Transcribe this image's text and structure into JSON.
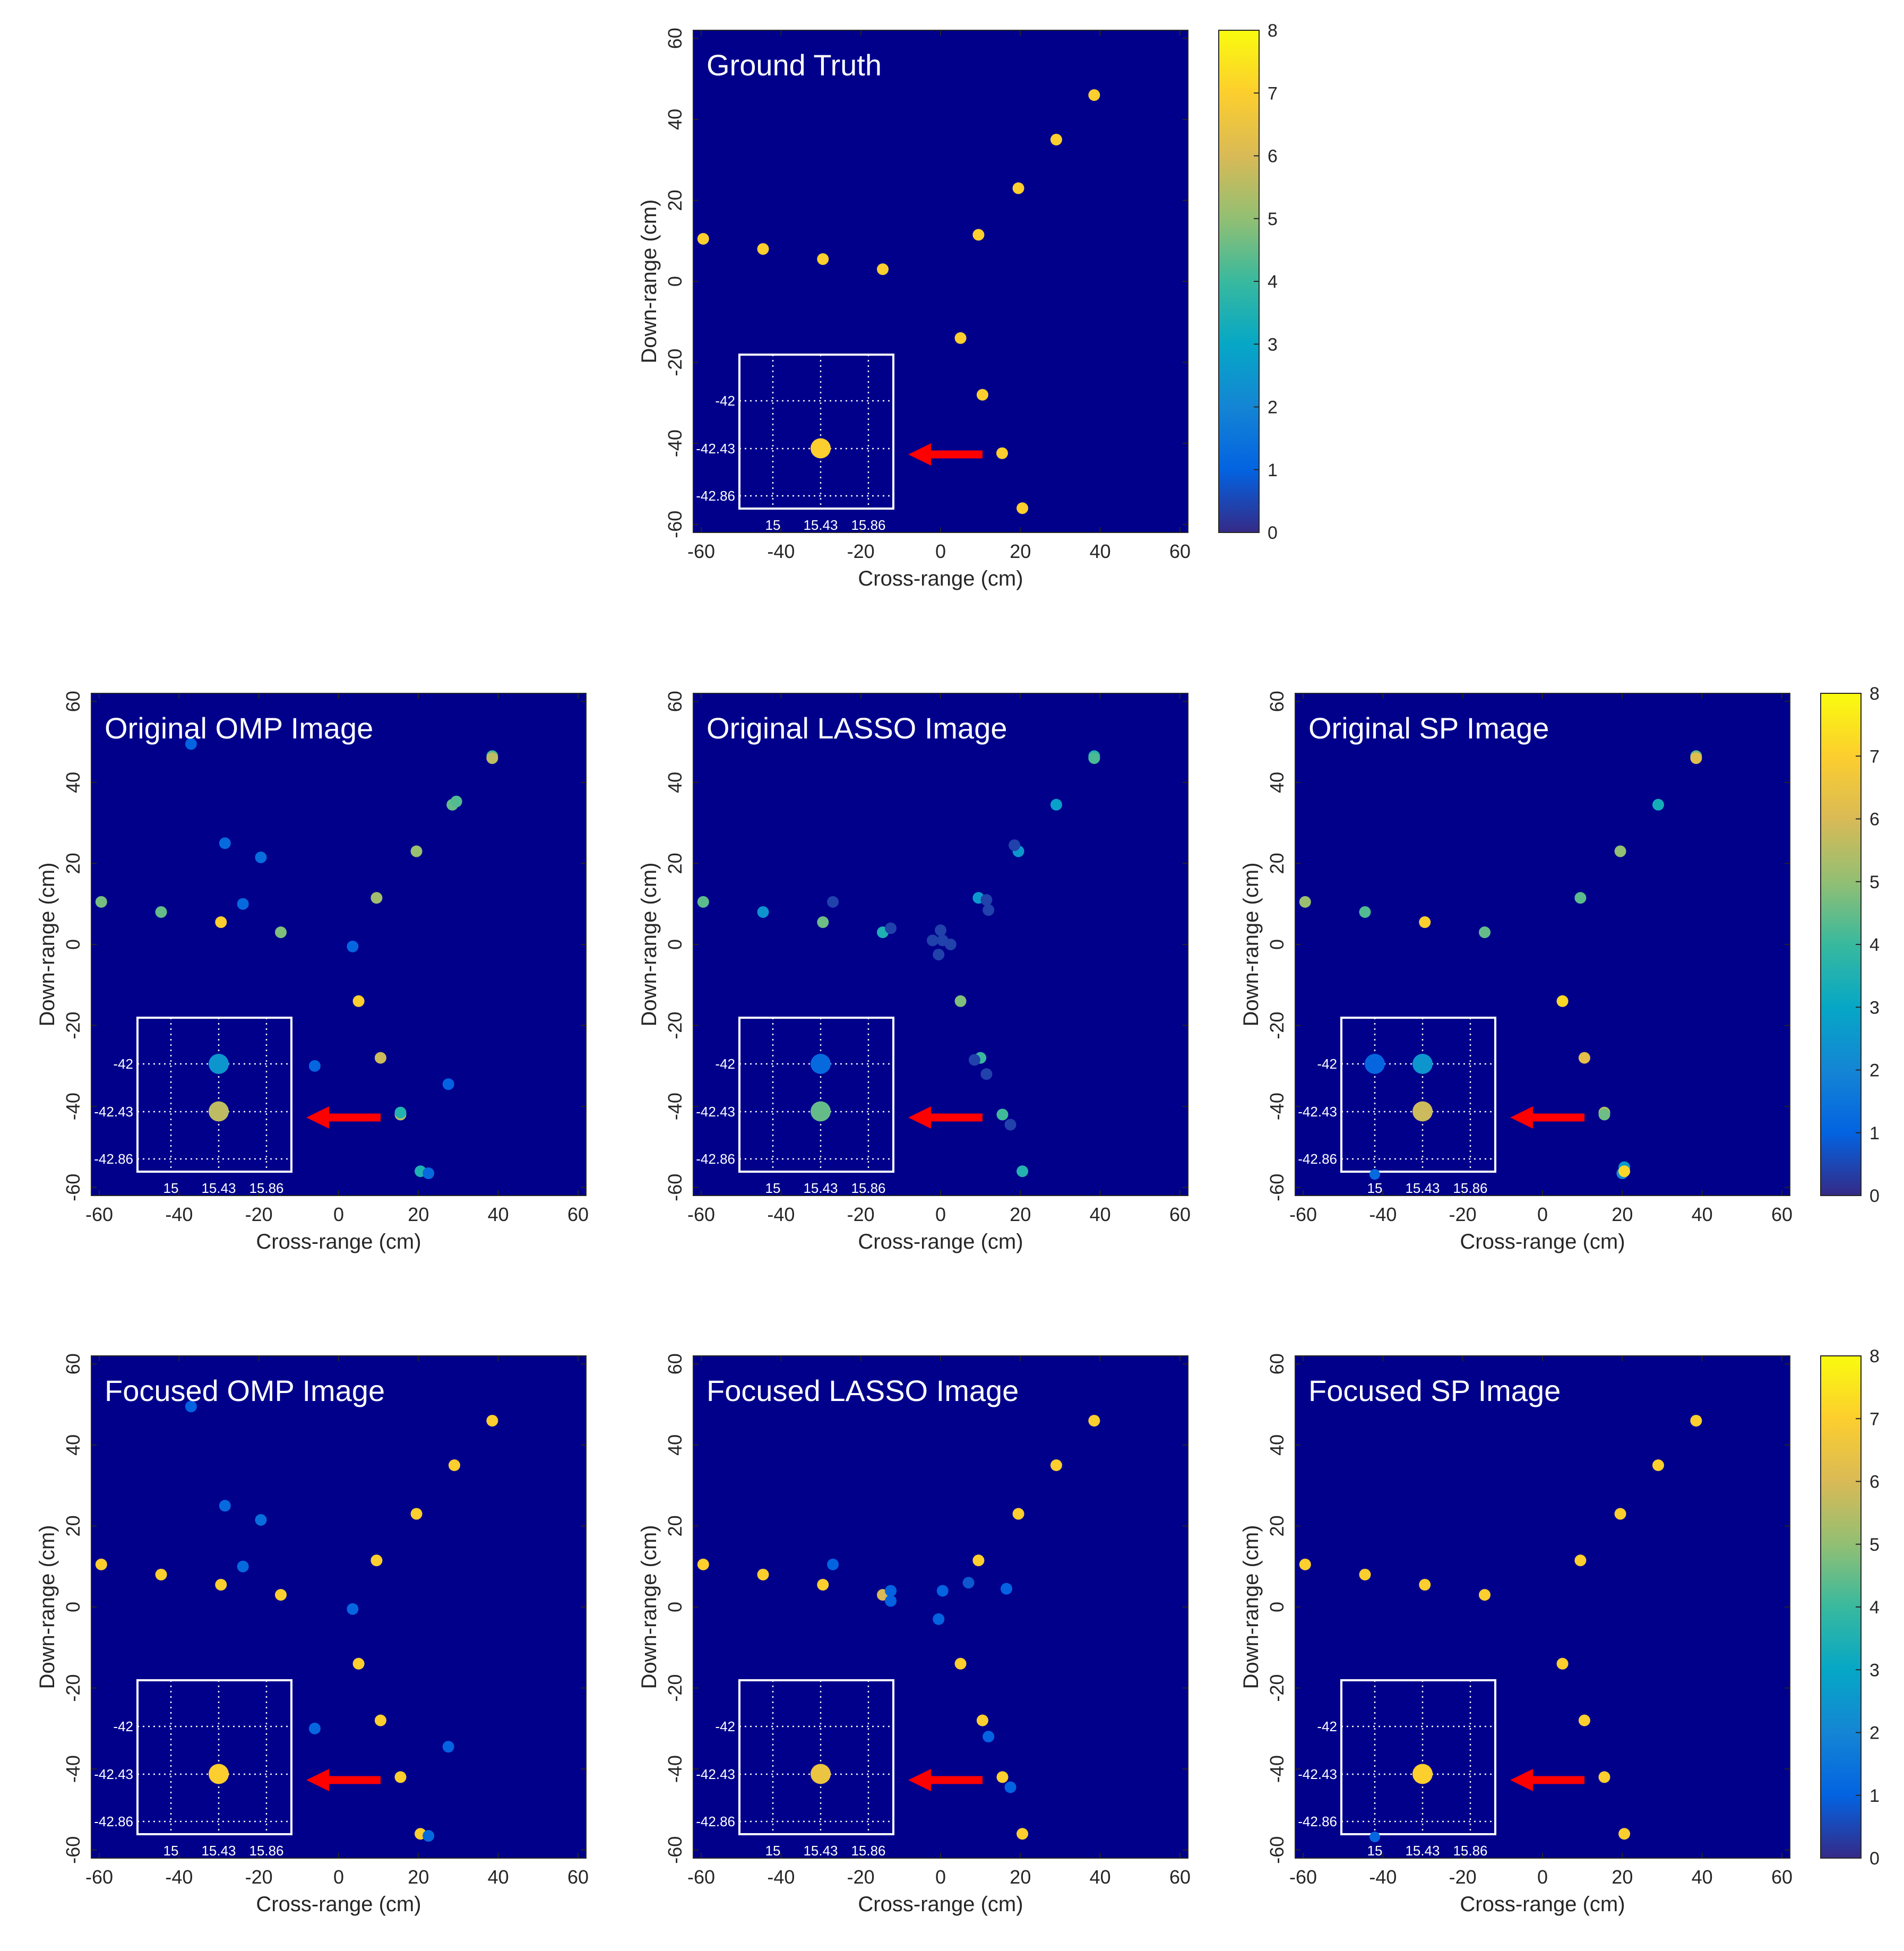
{
  "figure": {
    "colormap": [
      "#352a87",
      "#0363e1",
      "#1485d4",
      "#06a7c6",
      "#38b99e",
      "#92bf73",
      "#d9ba56",
      "#fcce2e",
      "#f9fb0e"
    ],
    "background_color": "#00008b",
    "arrow_color": "#ff0000",
    "inset_color": "#ffffff"
  },
  "chart_data": [
    {
      "type": "scatter",
      "title": "Ground Truth",
      "xlabel": "Cross-range (cm)",
      "ylabel": "Down-range (cm)",
      "xlim": [
        -62,
        62
      ],
      "ylim": [
        -62,
        62
      ],
      "xticks": [
        -60,
        -40,
        -20,
        0,
        20,
        40,
        60
      ],
      "yticks": [
        -60,
        -40,
        -20,
        0,
        20,
        40,
        60
      ],
      "clim": [
        0,
        8
      ],
      "points": [
        [
          -59.5,
          10.5,
          7
        ],
        [
          -44.5,
          8,
          7
        ],
        [
          -29.5,
          5.5,
          7
        ],
        [
          -14.5,
          3,
          7
        ],
        [
          9.5,
          11.5,
          7
        ],
        [
          19.5,
          23,
          7
        ],
        [
          29,
          35,
          7
        ],
        [
          38.5,
          46,
          7
        ],
        [
          5,
          -14,
          7
        ],
        [
          10.5,
          -28,
          7
        ],
        [
          15.43,
          -42.43,
          7
        ],
        [
          20.5,
          -56,
          7
        ]
      ],
      "inset": {
        "xticks": [
          "15",
          "15.43",
          "15.86"
        ],
        "yticks": [
          "-42",
          "-42.43",
          "-42.86"
        ],
        "points": [
          [
            15.43,
            -42.43,
            7
          ]
        ]
      }
    },
    {
      "type": "scatter",
      "title": "Original OMP Image",
      "xlabel": "Cross-range (cm)",
      "ylabel": "Down-range (cm)",
      "xlim": [
        -62,
        62
      ],
      "ylim": [
        -62,
        62
      ],
      "xticks": [
        -60,
        -40,
        -20,
        0,
        20,
        40,
        60
      ],
      "yticks": [
        -60,
        -40,
        -20,
        0,
        20,
        40,
        60
      ],
      "points": [
        [
          -59.5,
          10.5,
          4.7
        ],
        [
          -44.5,
          8,
          4.5
        ],
        [
          -29.5,
          5.5,
          7
        ],
        [
          -14.5,
          3,
          4.8
        ],
        [
          9.5,
          11.5,
          5.2
        ],
        [
          19.5,
          23,
          5.1
        ],
        [
          28.5,
          34.5,
          4.5
        ],
        [
          29.5,
          35.3,
          4.3
        ],
        [
          38.5,
          46.5,
          4.2
        ],
        [
          38.5,
          46,
          5.6
        ],
        [
          5,
          -14,
          7
        ],
        [
          10.5,
          -28,
          5.8
        ],
        [
          15.5,
          -42,
          5.5
        ],
        [
          15.5,
          -41.5,
          3.6
        ],
        [
          20.5,
          -56,
          3.5
        ],
        [
          22.5,
          -56.5,
          1.2
        ],
        [
          -37,
          49.5,
          1
        ],
        [
          -28.5,
          25,
          1.2
        ],
        [
          -19.5,
          21.5,
          1.3
        ],
        [
          -24,
          10,
          1.2
        ],
        [
          3.5,
          -0.5,
          1.1
        ],
        [
          -6,
          -30,
          1.1
        ],
        [
          27.5,
          -34.5,
          1
        ]
      ],
      "inset": {
        "xticks": [
          "15",
          "15.43",
          "15.86"
        ],
        "yticks": [
          "-42",
          "-42.43",
          "-42.86"
        ],
        "points": [
          [
            15.43,
            -42,
            2.5
          ],
          [
            15.43,
            -42.43,
            5.6
          ]
        ]
      }
    },
    {
      "type": "scatter",
      "title": "Original LASSO Image",
      "xlabel": "Cross-range (cm)",
      "ylabel": "Down-range (cm)",
      "xlim": [
        -62,
        62
      ],
      "ylim": [
        -62,
        62
      ],
      "xticks": [
        -60,
        -40,
        -20,
        0,
        20,
        40,
        60
      ],
      "yticks": [
        -60,
        -40,
        -20,
        0,
        20,
        40,
        60
      ],
      "points": [
        [
          -59.5,
          10.5,
          4.4
        ],
        [
          -44.5,
          8,
          2.4
        ],
        [
          -29.5,
          5.5,
          4.6
        ],
        [
          -14.5,
          3,
          3.5
        ],
        [
          9.5,
          11.5,
          2.6
        ],
        [
          19.5,
          23,
          2.5
        ],
        [
          29,
          34.5,
          2.8
        ],
        [
          38.5,
          46.5,
          3.6
        ],
        [
          38.5,
          46,
          4.2
        ],
        [
          5,
          -14,
          4.8
        ],
        [
          10,
          -28,
          4
        ],
        [
          15.5,
          -42,
          4.1
        ],
        [
          20.5,
          -56,
          3.6
        ],
        [
          -27,
          10.5,
          0.4
        ],
        [
          -12.5,
          4,
          0.4
        ],
        [
          -2,
          1,
          0.4
        ],
        [
          0,
          3.5,
          0.4
        ],
        [
          0.5,
          1,
          0.4
        ],
        [
          2.5,
          0,
          0.4
        ],
        [
          -0.5,
          -2.5,
          0.4
        ],
        [
          11.5,
          11,
          0.4
        ],
        [
          12,
          8.5,
          0.4
        ],
        [
          8.5,
          -28.5,
          0.4
        ],
        [
          11.5,
          -32,
          0.4
        ],
        [
          17.5,
          -44.5,
          0.4
        ],
        [
          18.5,
          24.5,
          0.4
        ]
      ],
      "inset": {
        "xticks": [
          "15",
          "15.43",
          "15.86"
        ],
        "yticks": [
          "-42",
          "-42.43",
          "-42.86"
        ],
        "points": [
          [
            15.43,
            -42,
            1.2
          ],
          [
            15.43,
            -42.43,
            4.5
          ]
        ]
      }
    },
    {
      "type": "scatter",
      "title": "Original SP Image",
      "xlabel": "Cross-range (cm)",
      "ylabel": "Down-range (cm)",
      "xlim": [
        -62,
        62
      ],
      "ylim": [
        -62,
        62
      ],
      "xticks": [
        -60,
        -40,
        -20,
        0,
        20,
        40,
        60
      ],
      "yticks": [
        -60,
        -40,
        -20,
        0,
        20,
        40,
        60
      ],
      "points": [
        [
          -59.5,
          10.5,
          5.1
        ],
        [
          -44.5,
          8,
          4.3
        ],
        [
          -29.5,
          5.5,
          7
        ],
        [
          -14.5,
          3,
          4.5
        ],
        [
          9.5,
          11.5,
          4.4
        ],
        [
          19.5,
          23,
          5
        ],
        [
          29,
          34.5,
          3.3
        ],
        [
          38.5,
          46.5,
          4.5
        ],
        [
          38.5,
          46,
          6.2
        ],
        [
          5,
          -14,
          7.2
        ],
        [
          10.5,
          -28,
          6.3
        ],
        [
          15.5,
          -41.5,
          5.4
        ],
        [
          15.5,
          -42,
          4.6
        ],
        [
          20.5,
          -55,
          2.6
        ],
        [
          20,
          -56.5,
          2.2
        ],
        [
          20.5,
          -56,
          7.2
        ]
      ],
      "inset": {
        "xticks": [
          "15",
          "15.43",
          "15.86"
        ],
        "yticks": [
          "-42",
          "-42.43",
          "-42.86"
        ],
        "points": [
          [
            15,
            -42,
            1.1
          ],
          [
            15.43,
            -42,
            2.5
          ],
          [
            15.43,
            -42.43,
            5.8
          ],
          [
            15,
            -43,
            1.2
          ]
        ]
      }
    },
    {
      "type": "scatter",
      "title": "Focused OMP Image",
      "xlabel": "Cross-range (cm)",
      "ylabel": "Down-range (cm)",
      "xlim": [
        -62,
        62
      ],
      "ylim": [
        -62,
        62
      ],
      "xticks": [
        -60,
        -40,
        -20,
        0,
        20,
        40,
        60
      ],
      "yticks": [
        -60,
        -40,
        -20,
        0,
        20,
        40,
        60
      ],
      "points": [
        [
          -59.5,
          10.5,
          7
        ],
        [
          -44.5,
          8,
          7
        ],
        [
          -29.5,
          5.5,
          7
        ],
        [
          -14.5,
          3,
          7
        ],
        [
          9.5,
          11.5,
          7
        ],
        [
          19.5,
          23,
          7
        ],
        [
          29,
          35,
          7
        ],
        [
          38.5,
          46,
          7
        ],
        [
          5,
          -14,
          7
        ],
        [
          10.5,
          -28,
          7
        ],
        [
          15.5,
          -42,
          7
        ],
        [
          20.5,
          -56,
          7
        ],
        [
          22.5,
          -56.5,
          1.2
        ],
        [
          -37,
          49.5,
          1
        ],
        [
          -28.5,
          25,
          1.2
        ],
        [
          -19.5,
          21.5,
          1.3
        ],
        [
          -24,
          10,
          1.2
        ],
        [
          3.5,
          -0.5,
          1.1
        ],
        [
          -6,
          -30,
          1.1
        ],
        [
          27.5,
          -34.5,
          1
        ]
      ],
      "inset": {
        "xticks": [
          "15",
          "15.43",
          "15.86"
        ],
        "yticks": [
          "-42",
          "-42.43",
          "-42.86"
        ],
        "points": [
          [
            15.43,
            -42.43,
            7
          ]
        ]
      }
    },
    {
      "type": "scatter",
      "title": "Focused LASSO Image",
      "xlabel": "Cross-range (cm)",
      "ylabel": "Down-range (cm)",
      "xlim": [
        -62,
        62
      ],
      "ylim": [
        -62,
        62
      ],
      "xticks": [
        -60,
        -40,
        -20,
        0,
        20,
        40,
        60
      ],
      "yticks": [
        -60,
        -40,
        -20,
        0,
        20,
        40,
        60
      ],
      "points": [
        [
          -59.5,
          10.5,
          7
        ],
        [
          -44.5,
          8,
          7
        ],
        [
          -29.5,
          5.5,
          7
        ],
        [
          -14.5,
          3,
          6
        ],
        [
          9.5,
          11.5,
          7
        ],
        [
          19.5,
          23,
          7
        ],
        [
          29,
          35,
          7
        ],
        [
          38.5,
          46,
          7
        ],
        [
          5,
          -14,
          7
        ],
        [
          10.5,
          -28,
          7
        ],
        [
          15.5,
          -42,
          7
        ],
        [
          20.5,
          -56,
          7
        ],
        [
          -27,
          10.5,
          1
        ],
        [
          -12.5,
          4,
          1
        ],
        [
          -12.5,
          1.5,
          1
        ],
        [
          0.5,
          4,
          1
        ],
        [
          -0.5,
          -3,
          1
        ],
        [
          7,
          6,
          0.8
        ],
        [
          16.5,
          4.5,
          1
        ],
        [
          12,
          -32,
          1
        ],
        [
          17.5,
          -44.5,
          1
        ]
      ],
      "inset": {
        "xticks": [
          "15",
          "15.43",
          "15.86"
        ],
        "yticks": [
          "-42",
          "-42.43",
          "-42.86"
        ],
        "points": [
          [
            15.43,
            -42.43,
            6.5
          ]
        ]
      }
    },
    {
      "type": "scatter",
      "title": "Focused SP Image",
      "xlabel": "Cross-range (cm)",
      "ylabel": "Down-range (cm)",
      "xlim": [
        -62,
        62
      ],
      "ylim": [
        -62,
        62
      ],
      "xticks": [
        -60,
        -40,
        -20,
        0,
        20,
        40,
        60
      ],
      "yticks": [
        -60,
        -40,
        -20,
        0,
        20,
        40,
        60
      ],
      "points": [
        [
          -59.5,
          10.5,
          7
        ],
        [
          -44.5,
          8,
          7
        ],
        [
          -29.5,
          5.5,
          7
        ],
        [
          -14.5,
          3,
          7
        ],
        [
          9.5,
          11.5,
          7
        ],
        [
          19.5,
          23,
          7
        ],
        [
          29,
          35,
          7
        ],
        [
          38.5,
          46,
          7
        ],
        [
          5,
          -14,
          7
        ],
        [
          10.5,
          -28,
          7
        ],
        [
          15.5,
          -42,
          7
        ],
        [
          20.5,
          -56,
          7
        ]
      ],
      "inset": {
        "xticks": [
          "15",
          "15.43",
          "15.86"
        ],
        "yticks": [
          "-42",
          "-42.43",
          "-42.86"
        ],
        "points": [
          [
            15.43,
            -42.43,
            7
          ],
          [
            15,
            -43,
            1.1
          ]
        ]
      }
    }
  ],
  "colorbars": [
    {
      "clim": [
        0,
        8
      ],
      "ticks": [
        "0",
        "1",
        "2",
        "3",
        "4",
        "5",
        "6",
        "7",
        "8"
      ]
    },
    {
      "clim": [
        0,
        8
      ],
      "ticks": [
        "0",
        "1",
        "2",
        "3",
        "4",
        "5",
        "6",
        "7",
        "8"
      ]
    },
    {
      "clim": [
        0,
        8
      ],
      "ticks": [
        "0",
        "1",
        "2",
        "3",
        "4",
        "5",
        "6",
        "7",
        "8"
      ]
    }
  ]
}
